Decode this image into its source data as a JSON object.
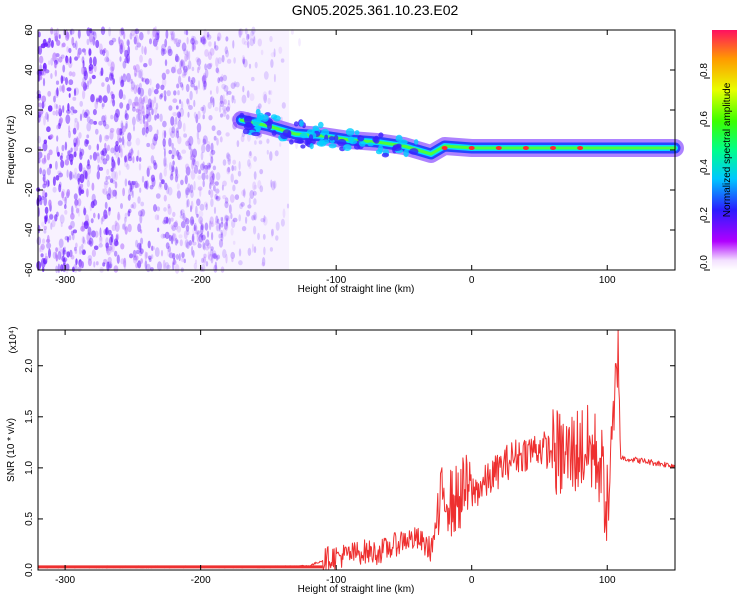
{
  "title": "GN05.2025.361.10.23.E02",
  "colors": {
    "snr_line": "#ee3030",
    "track_blue": "#1a3cff",
    "track_cyan": "#00e5ff",
    "track_green": "#4cff3a",
    "track_red": "#ff2a2a",
    "noise_purple": "#7a2cff",
    "frame": "#000000"
  },
  "chart_data": [
    {
      "type": "heatmap",
      "xlabel": "Height of straight line (km)",
      "ylabel": "Frequency (Hz)",
      "xlim": [
        -320,
        150
      ],
      "ylim": [
        -60,
        60
      ],
      "xticks": [
        -300,
        -200,
        -100,
        0,
        100
      ],
      "yticks": [
        -60,
        -40,
        -20,
        0,
        20,
        40,
        60
      ],
      "colorbar": {
        "label": "Normalized spectral amplitude",
        "range": [
          0.0,
          1.0
        ],
        "ticks": [
          0.0,
          0.2,
          0.4,
          0.6,
          0.8
        ],
        "colormap": "rainbow (white-magenta-blue-cyan-green-yellow-red)"
      },
      "noise_region_x": [
        -320,
        -125
      ],
      "signal_track": {
        "x": [
          -170,
          -150,
          -130,
          -110,
          -90,
          -70,
          -50,
          -40,
          -30,
          -20,
          0,
          20,
          50,
          80,
          100,
          120,
          150
        ],
        "frequency": [
          15,
          12,
          8,
          7,
          5,
          4,
          2,
          0,
          -2,
          2,
          1,
          1,
          1,
          1,
          1,
          1,
          1
        ],
        "peak_amplitude_near_x": [
          -20,
          0,
          20,
          40,
          60,
          80
        ]
      }
    },
    {
      "type": "line",
      "xlabel": "Height of straight line (km)",
      "ylabel": "SNR (10 * v/v)",
      "scale_note": "(x10⁴)",
      "xlim": [
        -320,
        150
      ],
      "ylim": [
        0,
        2.35
      ],
      "xticks": [
        -300,
        -200,
        -100,
        0,
        100
      ],
      "yticks": [
        0.0,
        0.5,
        1.0,
        1.5,
        2.0
      ],
      "series": [
        {
          "x": [
            -320,
            -250,
            -200,
            -150,
            -120,
            -105,
            -90,
            -80,
            -70,
            -60,
            -50,
            -40,
            -30,
            -25,
            -20,
            -15,
            -10,
            -5,
            0,
            10,
            20,
            30,
            40,
            50,
            60,
            70,
            80,
            90,
            95,
            100,
            105,
            108,
            110,
            120,
            130,
            140,
            150
          ],
          "y": [
            0.03,
            0.03,
            0.03,
            0.03,
            0.04,
            0.12,
            0.15,
            0.18,
            0.17,
            0.22,
            0.3,
            0.3,
            0.2,
            0.5,
            0.8,
            0.65,
            0.7,
            0.8,
            0.75,
            0.85,
            0.98,
            1.1,
            1.15,
            1.2,
            1.15,
            1.1,
            1.2,
            1.15,
            1.05,
            0.6,
            1.4,
            2.35,
            1.1,
            1.08,
            1.06,
            1.04,
            1.02
          ]
        }
      ]
    }
  ]
}
